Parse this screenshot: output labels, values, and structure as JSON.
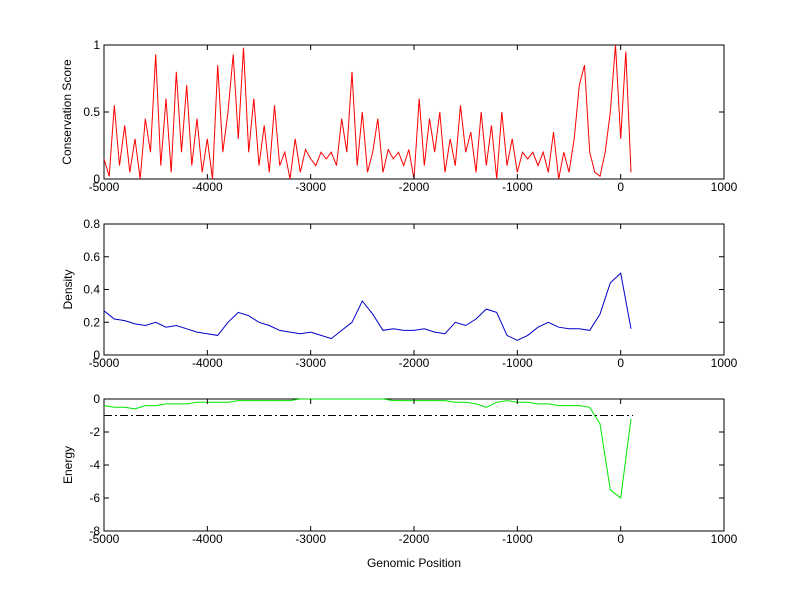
{
  "chart_data": [
    {
      "type": "line",
      "ylabel": "Conservation Score",
      "x": [
        -5000,
        -4950,
        -4900,
        -4850,
        -4800,
        -4750,
        -4700,
        -4650,
        -4600,
        -4550,
        -4500,
        -4450,
        -4400,
        -4350,
        -4300,
        -4250,
        -4200,
        -4150,
        -4100,
        -4050,
        -4000,
        -3950,
        -3900,
        -3850,
        -3800,
        -3750,
        -3700,
        -3650,
        -3600,
        -3550,
        -3500,
        -3450,
        -3400,
        -3350,
        -3300,
        -3250,
        -3200,
        -3150,
        -3100,
        -3050,
        -3000,
        -2950,
        -2900,
        -2850,
        -2800,
        -2750,
        -2700,
        -2650,
        -2600,
        -2550,
        -2500,
        -2450,
        -2400,
        -2350,
        -2300,
        -2250,
        -2200,
        -2150,
        -2100,
        -2050,
        -2000,
        -1950,
        -1900,
        -1850,
        -1800,
        -1750,
        -1700,
        -1650,
        -1600,
        -1550,
        -1500,
        -1450,
        -1400,
        -1350,
        -1300,
        -1250,
        -1200,
        -1150,
        -1100,
        -1050,
        -1000,
        -950,
        -900,
        -850,
        -800,
        -750,
        -700,
        -650,
        -600,
        -550,
        -500,
        -450,
        -400,
        -350,
        -300,
        -250,
        -200,
        -150,
        -100,
        -50,
        0,
        50,
        100
      ],
      "series": [
        {
          "color": "#ff0000",
          "values": [
            0.15,
            0.02,
            0.55,
            0.1,
            0.4,
            0.05,
            0.3,
            0.0,
            0.45,
            0.2,
            0.93,
            0.1,
            0.6,
            0.05,
            0.8,
            0.2,
            0.7,
            0.1,
            0.45,
            0.05,
            0.3,
            0.0,
            0.85,
            0.2,
            0.5,
            0.93,
            0.3,
            0.98,
            0.2,
            0.6,
            0.1,
            0.4,
            0.05,
            0.55,
            0.1,
            0.2,
            0.0,
            0.3,
            0.05,
            0.22,
            0.15,
            0.1,
            0.2,
            0.15,
            0.2,
            0.1,
            0.45,
            0.2,
            0.8,
            0.1,
            0.5,
            0.05,
            0.2,
            0.45,
            0.05,
            0.22,
            0.15,
            0.2,
            0.1,
            0.22,
            0.0,
            0.6,
            0.1,
            0.45,
            0.2,
            0.5,
            0.05,
            0.3,
            0.1,
            0.55,
            0.2,
            0.35,
            0.05,
            0.5,
            0.1,
            0.4,
            0.0,
            0.5,
            0.1,
            0.3,
            0.05,
            0.2,
            0.15,
            0.2,
            0.1,
            0.2,
            0.05,
            0.35,
            0.0,
            0.2,
            0.05,
            0.3,
            0.7,
            0.85,
            0.2,
            0.05,
            0.02,
            0.2,
            0.5,
            1.0,
            0.3,
            0.95,
            0.05
          ]
        }
      ],
      "xlim": [
        -5000,
        1000
      ],
      "xticks": [
        -5000,
        -4000,
        -3000,
        -2000,
        -1000,
        0,
        1000
      ],
      "ylim": [
        0,
        1
      ],
      "yticks": [
        0,
        0.5,
        1
      ]
    },
    {
      "type": "line",
      "ylabel": "Density",
      "x": [
        -5000,
        -4900,
        -4800,
        -4700,
        -4600,
        -4500,
        -4400,
        -4300,
        -4200,
        -4100,
        -4000,
        -3900,
        -3800,
        -3700,
        -3600,
        -3500,
        -3400,
        -3300,
        -3200,
        -3100,
        -3000,
        -2900,
        -2800,
        -2700,
        -2600,
        -2500,
        -2400,
        -2300,
        -2200,
        -2100,
        -2000,
        -1900,
        -1800,
        -1700,
        -1600,
        -1500,
        -1400,
        -1300,
        -1200,
        -1100,
        -1000,
        -900,
        -800,
        -700,
        -600,
        -500,
        -400,
        -300,
        -200,
        -100,
        0,
        100
      ],
      "series": [
        {
          "color": "#0000c8",
          "values": [
            0.27,
            0.22,
            0.21,
            0.19,
            0.18,
            0.2,
            0.17,
            0.18,
            0.16,
            0.14,
            0.13,
            0.12,
            0.2,
            0.26,
            0.24,
            0.2,
            0.18,
            0.15,
            0.14,
            0.13,
            0.14,
            0.12,
            0.1,
            0.15,
            0.2,
            0.33,
            0.25,
            0.15,
            0.16,
            0.15,
            0.15,
            0.16,
            0.14,
            0.13,
            0.2,
            0.18,
            0.22,
            0.28,
            0.26,
            0.12,
            0.09,
            0.12,
            0.17,
            0.2,
            0.17,
            0.16,
            0.16,
            0.15,
            0.25,
            0.44,
            0.5,
            0.16
          ]
        }
      ],
      "xlim": [
        -5000,
        1000
      ],
      "xticks": [
        -5000,
        -4000,
        -3000,
        -2000,
        -1000,
        0,
        1000
      ],
      "ylim": [
        0,
        0.8
      ],
      "yticks": [
        0,
        0.2,
        0.4,
        0.6,
        0.8
      ]
    },
    {
      "type": "line",
      "ylabel": "Energy",
      "xlabel": "Genomic Position",
      "x": [
        -5000,
        -4900,
        -4800,
        -4700,
        -4600,
        -4500,
        -4400,
        -4300,
        -4200,
        -4100,
        -4000,
        -3900,
        -3800,
        -3700,
        -3600,
        -3500,
        -3400,
        -3300,
        -3200,
        -3100,
        -3000,
        -2900,
        -2800,
        -2700,
        -2600,
        -2500,
        -2400,
        -2300,
        -2200,
        -2100,
        -2000,
        -1900,
        -1800,
        -1700,
        -1600,
        -1500,
        -1400,
        -1300,
        -1200,
        -1100,
        -1000,
        -900,
        -800,
        -700,
        -600,
        -500,
        -400,
        -300,
        -200,
        -100,
        0,
        100
      ],
      "series": [
        {
          "color": "#00e600",
          "values": [
            -0.4,
            -0.5,
            -0.5,
            -0.6,
            -0.4,
            -0.4,
            -0.3,
            -0.3,
            -0.3,
            -0.2,
            -0.2,
            -0.2,
            -0.2,
            -0.1,
            -0.1,
            -0.1,
            -0.1,
            -0.1,
            -0.1,
            0,
            0,
            0,
            0,
            0,
            0,
            0,
            0,
            0,
            -0.1,
            -0.1,
            -0.1,
            -0.1,
            -0.1,
            -0.1,
            -0.2,
            -0.2,
            -0.3,
            -0.5,
            -0.2,
            -0.1,
            -0.2,
            -0.2,
            -0.3,
            -0.3,
            -0.4,
            -0.4,
            -0.4,
            -0.5,
            -1.5,
            -5.5,
            -6.0,
            -1.2
          ]
        },
        {
          "color": "#000000",
          "dash": "8,3,2,3",
          "x": [
            -5000,
            120
          ],
          "values": [
            -1,
            -1
          ]
        }
      ],
      "xlim": [
        -5000,
        1000
      ],
      "xticks": [
        -5000,
        -4000,
        -3000,
        -2000,
        -1000,
        0,
        1000
      ],
      "ylim": [
        -8,
        0
      ],
      "yticks": [
        -8,
        -6,
        -4,
        -2,
        0
      ]
    }
  ]
}
